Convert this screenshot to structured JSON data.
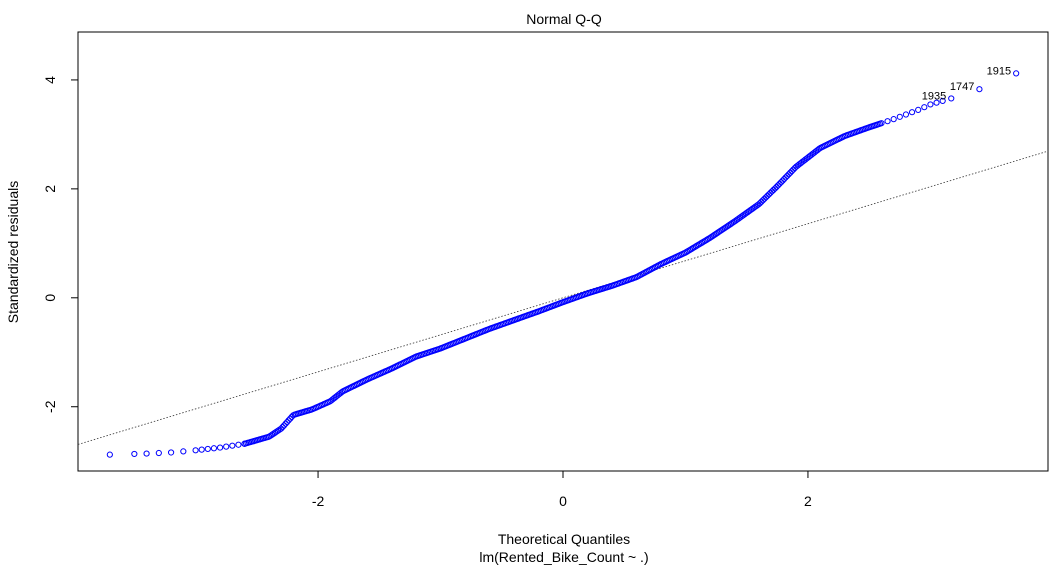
{
  "chart_data": {
    "type": "scatter",
    "title": "Normal Q-Q",
    "xlabel": "Theoretical Quantiles",
    "subtitle": "lm(Rented_Bike_Count ~ .)",
    "ylabel": "Standardized residuals",
    "xlim": [
      -3.96,
      3.96
    ],
    "ylim": [
      -3.18,
      4.88
    ],
    "x_ticks": [
      -2,
      0,
      2
    ],
    "y_ticks": [
      -2,
      0,
      2,
      4
    ],
    "grid": false,
    "point_color": "#0000ff",
    "line_color": "#333333",
    "reference_line": {
      "intercept": 0,
      "slope": 0.68
    },
    "labeled_points": [
      {
        "label": "1915",
        "x": 3.7,
        "y": 4.12
      },
      {
        "label": "1747",
        "x": 3.4,
        "y": 3.83
      },
      {
        "label": "1935",
        "x": 3.17,
        "y": 3.66
      }
    ],
    "curve_knots": [
      [
        -3.7,
        -2.88
      ],
      [
        -3.4,
        -2.86
      ],
      [
        -3.2,
        -2.84
      ],
      [
        -3.0,
        -2.8
      ],
      [
        -2.8,
        -2.75
      ],
      [
        -2.6,
        -2.68
      ],
      [
        -2.4,
        -2.55
      ],
      [
        -2.3,
        -2.4
      ],
      [
        -2.2,
        -2.15
      ],
      [
        -2.05,
        -2.05
      ],
      [
        -1.9,
        -1.9
      ],
      [
        -1.8,
        -1.72
      ],
      [
        -1.6,
        -1.5
      ],
      [
        -1.4,
        -1.3
      ],
      [
        -1.2,
        -1.08
      ],
      [
        -1.0,
        -0.93
      ],
      [
        -0.8,
        -0.75
      ],
      [
        -0.6,
        -0.57
      ],
      [
        -0.4,
        -0.41
      ],
      [
        -0.2,
        -0.25
      ],
      [
        0.0,
        -0.08
      ],
      [
        0.2,
        0.08
      ],
      [
        0.4,
        0.22
      ],
      [
        0.6,
        0.38
      ],
      [
        0.8,
        0.62
      ],
      [
        1.0,
        0.83
      ],
      [
        1.2,
        1.1
      ],
      [
        1.4,
        1.4
      ],
      [
        1.6,
        1.72
      ],
      [
        1.75,
        2.05
      ],
      [
        1.9,
        2.4
      ],
      [
        2.1,
        2.75
      ],
      [
        2.3,
        2.97
      ],
      [
        2.5,
        3.13
      ],
      [
        2.7,
        3.28
      ],
      [
        2.9,
        3.45
      ],
      [
        3.0,
        3.55
      ],
      [
        3.17,
        3.66
      ],
      [
        3.4,
        3.83
      ],
      [
        3.7,
        4.12
      ]
    ],
    "sample_count": 420
  }
}
